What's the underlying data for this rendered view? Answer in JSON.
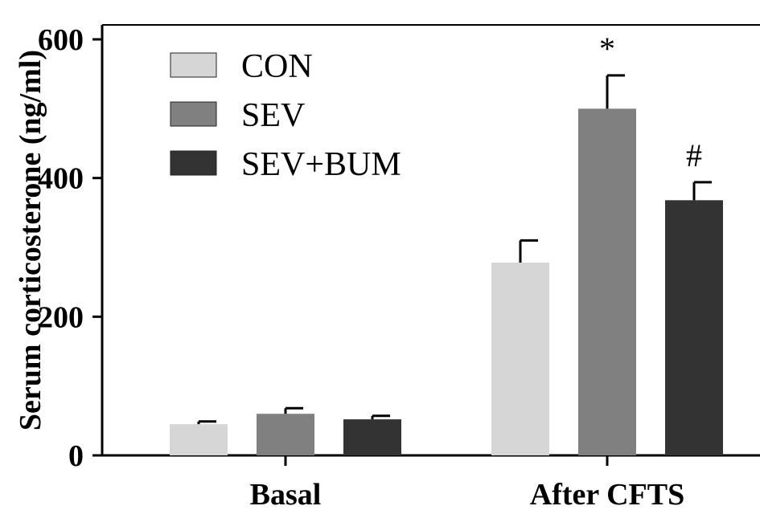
{
  "chart_data": {
    "type": "bar",
    "ylabel": "Serum corticosterone (ng/ml)",
    "ylim": [
      0,
      600
    ],
    "yticks": [
      "0",
      "200",
      "400",
      "600"
    ],
    "categories": [
      "Basal",
      "After CFTS"
    ],
    "legend_position": "top-left",
    "grid": false,
    "series": [
      {
        "name": "CON",
        "color": "#d6d6d6",
        "values": [
          45,
          278
        ],
        "errors": [
          4,
          32
        ],
        "annotations": [
          "",
          ""
        ]
      },
      {
        "name": "SEV",
        "color": "#808080",
        "values": [
          60,
          500
        ],
        "errors": [
          8,
          48
        ],
        "annotations": [
          "",
          "*"
        ]
      },
      {
        "name": "SEV+BUM",
        "color": "#333333",
        "values": [
          52,
          368
        ],
        "errors": [
          5,
          26
        ],
        "annotations": [
          "",
          "#"
        ]
      }
    ]
  }
}
